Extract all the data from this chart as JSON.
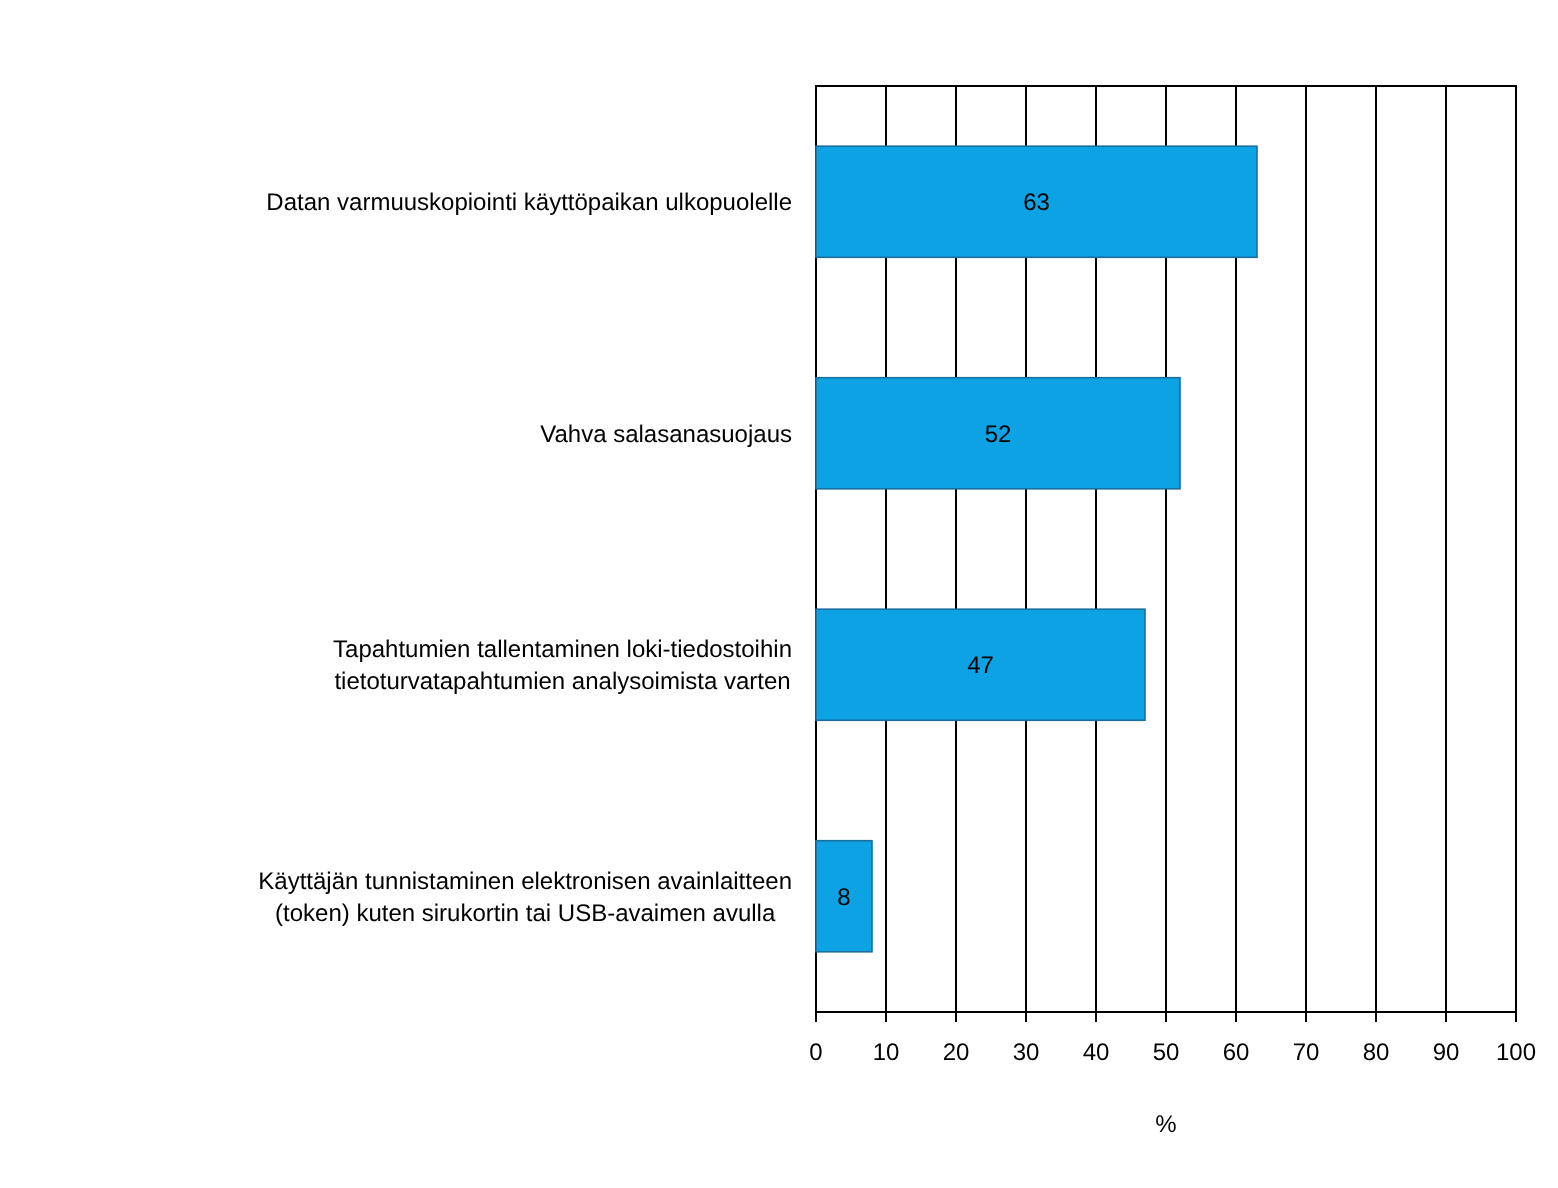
{
  "chart_data": {
    "type": "bar",
    "orientation": "horizontal",
    "categories": [
      "Datan varmuuskopiointi käyttöpaikan ulkopuolelle",
      "Vahva salasanasuojaus",
      "Tapahtumien tallentaminen loki-tiedostoihin tietoturvatapahtumien analysoimista varten",
      "Käyttäjän tunnistaminen elektronisen avainlaitteen (token) kuten sirukortin tai USB-avaimen avulla"
    ],
    "values": [
      63,
      52,
      47,
      8
    ],
    "color": "#0ca2e4",
    "xlim": [
      0,
      100
    ],
    "xticks": [
      0,
      10,
      20,
      30,
      40,
      50,
      60,
      70,
      80,
      90,
      100
    ],
    "xlabel": "%",
    "grid": "x",
    "data_labels": true
  }
}
